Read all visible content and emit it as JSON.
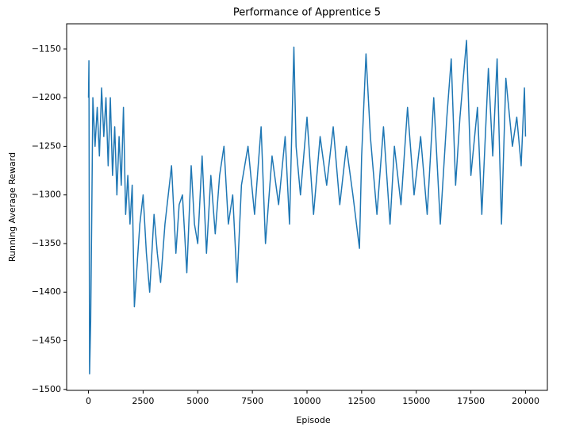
{
  "chart_data": {
    "type": "line",
    "title": "Performance of Apprentice 5",
    "x_label": "Episode",
    "y_label": "Running Average Reward",
    "color": "#1f77b4",
    "x": [
      0,
      20,
      50,
      100,
      150,
      200,
      300,
      400,
      500,
      600,
      700,
      800,
      900,
      1000,
      1100,
      1200,
      1300,
      1400,
      1500,
      1600,
      1700,
      1800,
      1900,
      2000,
      2100,
      2200,
      2350,
      2500,
      2650,
      2800,
      3000,
      3150,
      3300,
      3500,
      3650,
      3800,
      4000,
      4150,
      4300,
      4500,
      4700,
      4850,
      5000,
      5200,
      5400,
      5600,
      5800,
      6000,
      6200,
      6400,
      6600,
      6800,
      7000,
      7300,
      7600,
      7900,
      8100,
      8400,
      8700,
      9000,
      9200,
      9400,
      9500,
      9700,
      10000,
      10300,
      10600,
      10900,
      11200,
      11500,
      11800,
      12100,
      12400,
      12500,
      12700,
      12900,
      13200,
      13500,
      13800,
      14000,
      14300,
      14600,
      14900,
      15200,
      15500,
      15800,
      16100,
      16400,
      16600,
      16800,
      17000,
      17300,
      17500,
      17800,
      18000,
      18300,
      18500,
      18700,
      18900,
      19100,
      19400,
      19600,
      19800,
      19950,
      20000
    ],
    "values": [
      -1200,
      -1162,
      -1484,
      -1430,
      -1320,
      -1200,
      -1250,
      -1210,
      -1260,
      -1190,
      -1240,
      -1200,
      -1270,
      -1200,
      -1280,
      -1230,
      -1300,
      -1240,
      -1290,
      -1210,
      -1320,
      -1280,
      -1330,
      -1290,
      -1415,
      -1380,
      -1330,
      -1300,
      -1360,
      -1400,
      -1320,
      -1360,
      -1390,
      -1330,
      -1300,
      -1270,
      -1360,
      -1310,
      -1300,
      -1380,
      -1270,
      -1330,
      -1350,
      -1260,
      -1360,
      -1280,
      -1340,
      -1280,
      -1250,
      -1330,
      -1300,
      -1390,
      -1290,
      -1250,
      -1320,
      -1230,
      -1350,
      -1260,
      -1310,
      -1240,
      -1330,
      -1148,
      -1250,
      -1300,
      -1220,
      -1320,
      -1240,
      -1290,
      -1230,
      -1310,
      -1250,
      -1300,
      -1355,
      -1260,
      -1155,
      -1240,
      -1320,
      -1230,
      -1330,
      -1250,
      -1310,
      -1210,
      -1300,
      -1240,
      -1320,
      -1200,
      -1330,
      -1220,
      -1160,
      -1290,
      -1220,
      -1141,
      -1280,
      -1210,
      -1320,
      -1170,
      -1260,
      -1160,
      -1330,
      -1180,
      -1250,
      -1220,
      -1270,
      -1190,
      -1240
    ],
    "xlim": [
      -1000,
      21000
    ],
    "xticks": [
      0,
      2500,
      5000,
      7500,
      10000,
      12500,
      15000,
      17500,
      20000
    ],
    "ylim": [
      -1501,
      -1124
    ],
    "yticks": [
      {
        "value": -1500,
        "label": "−1500"
      },
      {
        "value": -1450,
        "label": "−1450"
      },
      {
        "value": -1400,
        "label": "−1400"
      },
      {
        "value": -1350,
        "label": "−1350"
      },
      {
        "value": -1300,
        "label": "−1300"
      },
      {
        "value": -1250,
        "label": "−1250"
      },
      {
        "value": -1200,
        "label": "−1200"
      },
      {
        "value": -1150,
        "label": "−1150"
      }
    ]
  }
}
